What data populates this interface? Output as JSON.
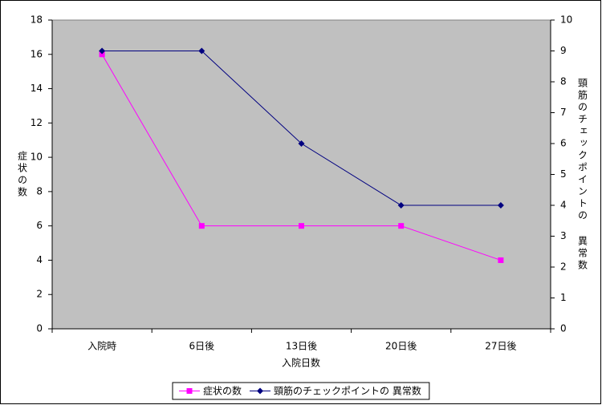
{
  "chart_data": {
    "type": "line",
    "x_label": "入院日数",
    "y_label": "症状の数",
    "y2_label": "頸筋のチェックポイントの 異常数",
    "categories": [
      "入院時",
      "6日後",
      "13日後",
      "20日後",
      "27日後"
    ],
    "series": [
      {
        "name": "症状の数",
        "color": "#ff00ff",
        "marker": "square",
        "values": [
          16,
          6,
          6,
          6,
          4
        ]
      },
      {
        "name": "頸筋のチェックポイントの 異常数",
        "color": "#000080",
        "marker": "diamond",
        "axis": "y2",
        "values": [
          9,
          9,
          6,
          4,
          4
        ]
      }
    ],
    "ylim": [
      0,
      18
    ],
    "yticks": [
      0,
      2,
      4,
      6,
      8,
      10,
      12,
      14,
      16,
      18
    ],
    "y2lim": [
      0,
      10
    ],
    "y2ticks": [
      0,
      1,
      2,
      3,
      4,
      5,
      6,
      7,
      8,
      9,
      10
    ],
    "plot_background": "#c0c0c0",
    "legend": "bottom"
  }
}
